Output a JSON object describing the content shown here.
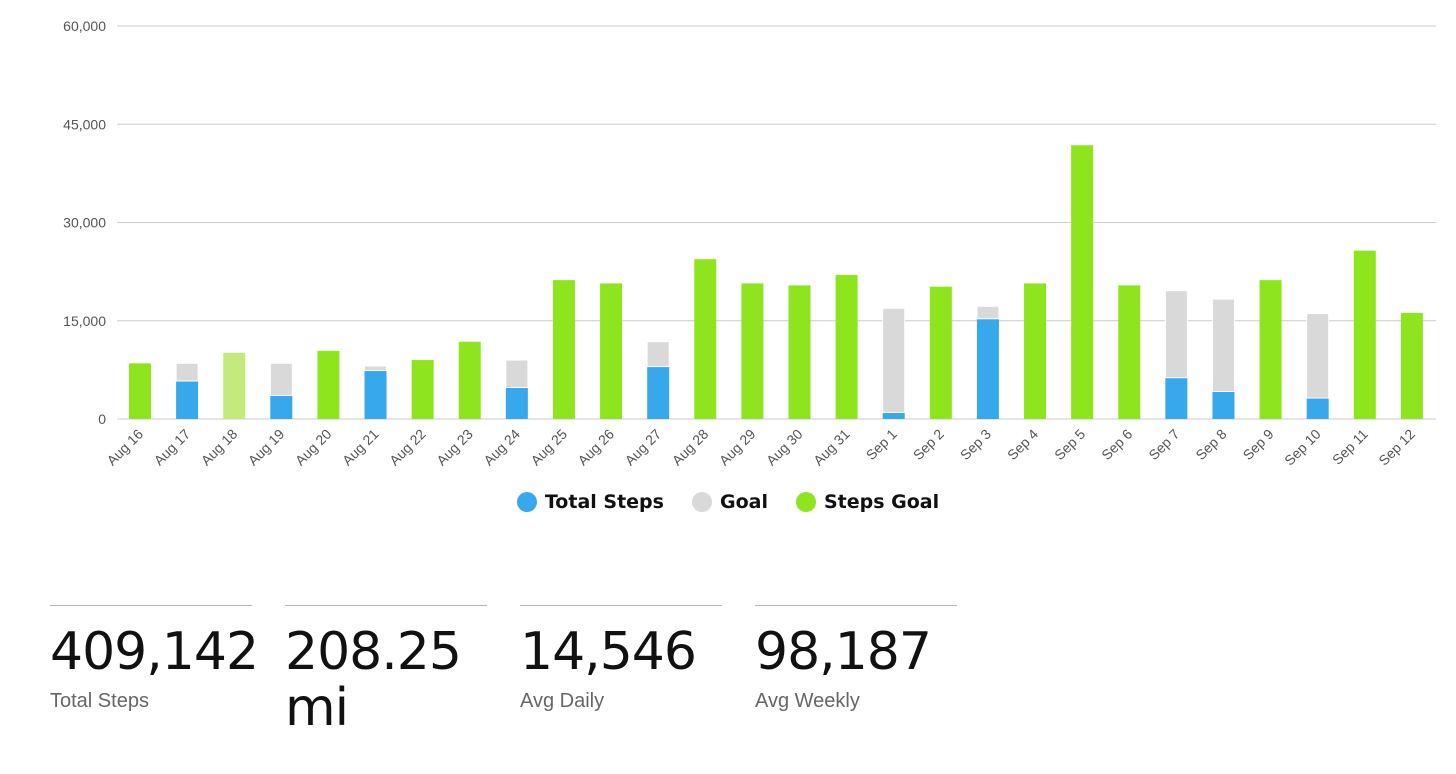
{
  "chart_data": {
    "type": "bar",
    "stacked": true,
    "ylim": [
      0,
      60000
    ],
    "yticks": [
      "0",
      "15,000",
      "30,000",
      "45,000",
      "60,000"
    ],
    "ytick_values": [
      0,
      15000,
      30000,
      45000,
      60000
    ],
    "grid": true,
    "legend_position": "bottom-center",
    "categories": [
      "Aug 16",
      "Aug 17",
      "Aug 18",
      "Aug 19",
      "Aug 20",
      "Aug 21",
      "Aug 22",
      "Aug 23",
      "Aug 24",
      "Aug 25",
      "Aug 26",
      "Aug 27",
      "Aug 28",
      "Aug 29",
      "Aug 30",
      "Aug 31",
      "Sep 1",
      "Sep 2",
      "Sep 3",
      "Sep 4",
      "Sep 5",
      "Sep 6",
      "Sep 7",
      "Sep 8",
      "Sep 9",
      "Sep 10",
      "Sep 11",
      "Sep 12"
    ],
    "series": [
      {
        "name": "Total Steps",
        "color": "#37a8ec",
        "values": [
          0,
          5800,
          0,
          3600,
          0,
          7400,
          0,
          0,
          4800,
          0,
          0,
          8000,
          0,
          0,
          0,
          0,
          1000,
          0,
          15300,
          0,
          0,
          0,
          6300,
          4200,
          0,
          3200,
          0,
          0
        ]
      },
      {
        "name": "Goal",
        "color": "#d9d9d9",
        "values": [
          0,
          2700,
          0,
          4900,
          0,
          700,
          0,
          0,
          4200,
          0,
          0,
          3800,
          0,
          0,
          0,
          0,
          15900,
          0,
          1900,
          0,
          0,
          0,
          13300,
          14100,
          0,
          12900,
          0,
          0
        ]
      },
      {
        "name": "Steps Goal",
        "color": "#8ee51d",
        "values": [
          8500,
          0,
          10100,
          0,
          10400,
          0,
          9000,
          11800,
          0,
          21200,
          20700,
          0,
          24400,
          20700,
          20400,
          22000,
          0,
          20200,
          0,
          20700,
          41800,
          20400,
          0,
          0,
          21200,
          0,
          25700,
          16200
        ]
      }
    ],
    "highlight": {
      "category": "Aug 18",
      "color": "#c3ea7a"
    }
  },
  "legend": [
    {
      "label": "Total Steps",
      "color": "#37a8ec"
    },
    {
      "label": "Goal",
      "color": "#d9d9d9"
    },
    {
      "label": "Steps Goal",
      "color": "#8ee51d"
    }
  ],
  "stats": {
    "total_steps": {
      "value": "409,142",
      "label": "Total Steps"
    },
    "distance": {
      "value": "208.25 mi"
    },
    "avg_daily": {
      "value": "14,546",
      "label": "Avg Daily"
    },
    "avg_weekly": {
      "value": "98,187",
      "label": "Avg Weekly"
    }
  }
}
